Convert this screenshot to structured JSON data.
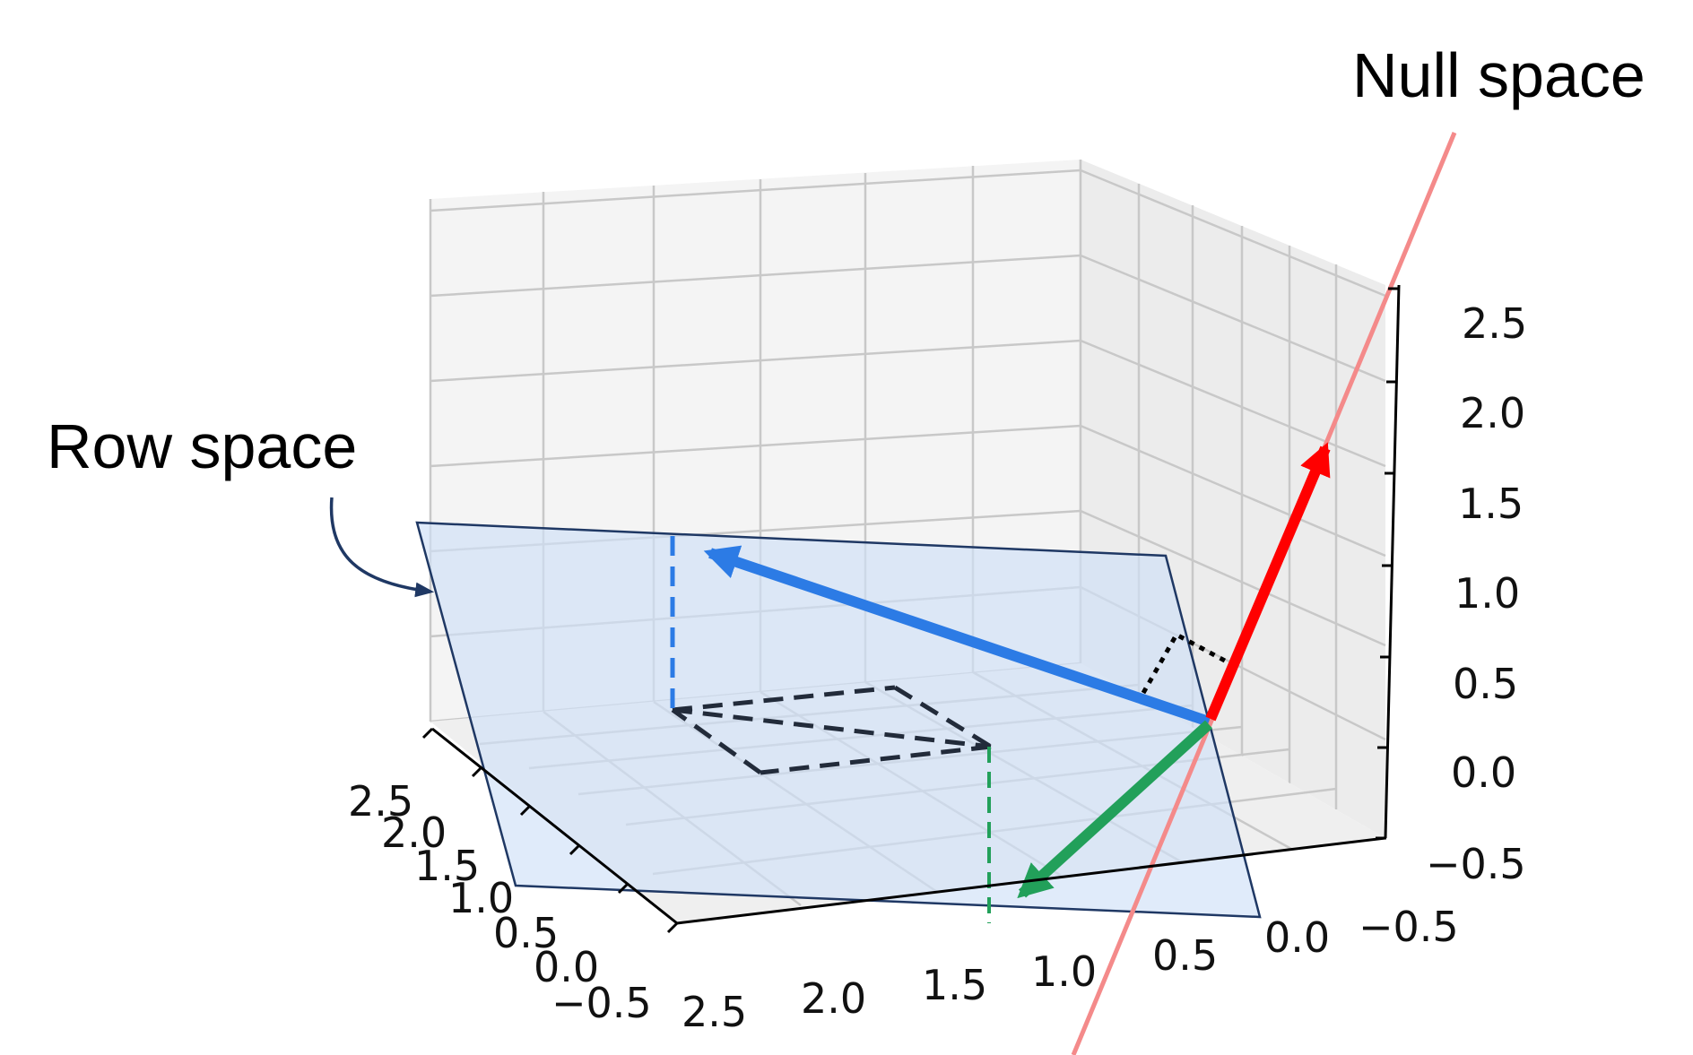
{
  "annotations": {
    "row_space": "Row space",
    "null_space": "Null space"
  },
  "colors": {
    "grid": "#c8c8c8",
    "pane_back": "#f2f2f2",
    "pane_floor": "#eeeeee",
    "plane_fill": "#cfe0f8",
    "plane_edge": "#1f3864",
    "vector_row": "#2c7be5",
    "vector_null": "#ff0000",
    "null_space_line": "#f48a8a",
    "vector_green": "#22a05a",
    "dashed_black": "#222b3a"
  },
  "ticks": {
    "z": [
      "2.5",
      "2.0",
      "1.5",
      "1.0",
      "0.5",
      "0.0",
      "−0.5"
    ],
    "right": [
      "0.0",
      "−0.5"
    ],
    "bottom": [
      "2.5",
      "2.0",
      "1.5",
      "1.0",
      "0.5"
    ],
    "left": [
      "2.5",
      "2.0",
      "1.5",
      "1.0",
      "0.5",
      "0.0",
      "−0.5"
    ]
  }
}
